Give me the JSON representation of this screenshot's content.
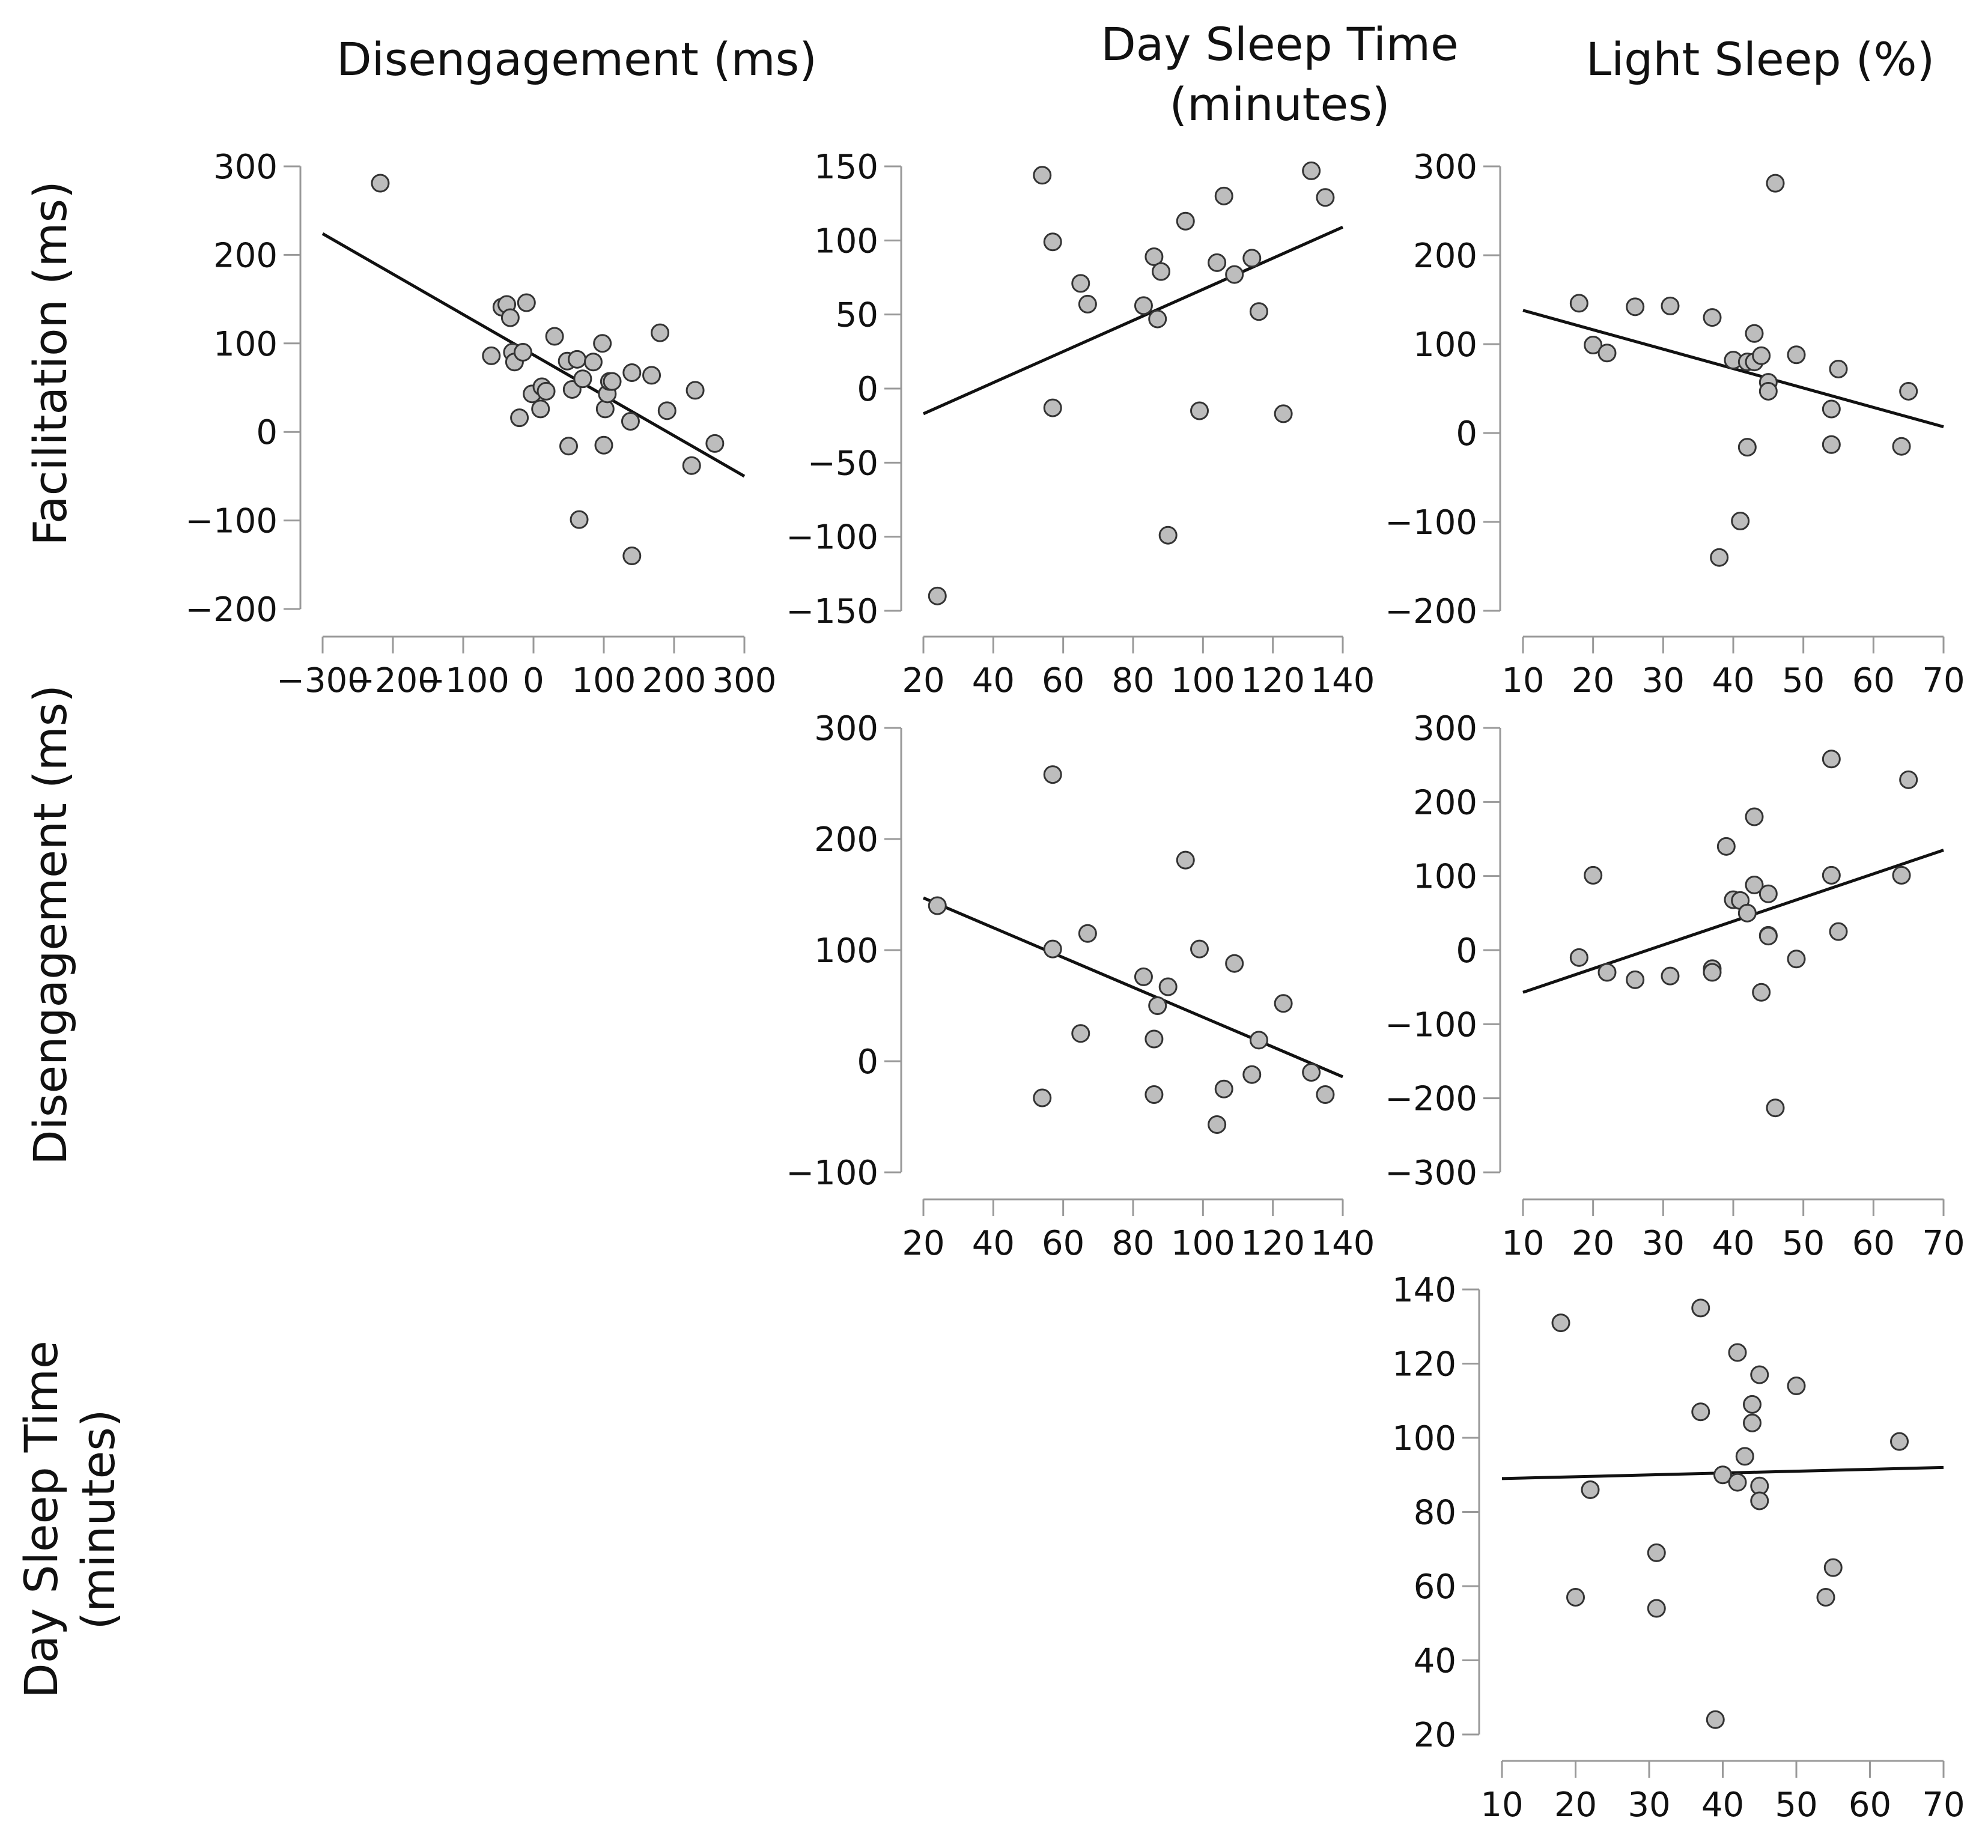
{
  "column_headers": [
    {
      "lines": [
        "Disengagement (ms)"
      ]
    },
    {
      "lines": [
        "Day Sleep Time",
        "(minutes)"
      ]
    },
    {
      "lines": [
        "Light Sleep (%)"
      ]
    }
  ],
  "row_headers": [
    {
      "lines": [
        "Facilitation (ms)"
      ]
    },
    {
      "lines": [
        "Disengagement (ms)"
      ]
    },
    {
      "lines": [
        "Day Sleep Time",
        "(minutes)"
      ]
    }
  ],
  "chart_data": [
    {
      "type": "scatter",
      "row": 0,
      "col": 0,
      "xlabel": "Disengagement (ms)",
      "ylabel": "Facilitation (ms)",
      "xlim": [
        -300,
        300
      ],
      "ylim": [
        -200,
        300
      ],
      "xticks": [
        -300,
        -200,
        -100,
        0,
        100,
        200,
        300
      ],
      "yticks": [
        300,
        200,
        100,
        0,
        -100,
        -200
      ],
      "xtick_labels": [
        "−300",
        "−200",
        "−100",
        "0",
        "100",
        "200",
        "300"
      ],
      "ytick_labels": [
        "300",
        "200",
        "100",
        "0",
        "−100",
        "−200"
      ],
      "points": [
        [
          -218,
          281
        ],
        [
          -60,
          86
        ],
        [
          -45,
          141
        ],
        [
          -38,
          144
        ],
        [
          -33,
          129
        ],
        [
          -30,
          90
        ],
        [
          -27,
          79
        ],
        [
          -20,
          16
        ],
        [
          -15,
          90
        ],
        [
          -10,
          146
        ],
        [
          -2,
          43
        ],
        [
          10,
          26
        ],
        [
          12,
          51
        ],
        [
          18,
          46
        ],
        [
          30,
          108
        ],
        [
          48,
          80
        ],
        [
          50,
          -16
        ],
        [
          55,
          48
        ],
        [
          62,
          82
        ],
        [
          65,
          -99
        ],
        [
          70,
          60
        ],
        [
          85,
          79
        ],
        [
          98,
          100
        ],
        [
          100,
          -15
        ],
        [
          102,
          26
        ],
        [
          105,
          43
        ],
        [
          108,
          57
        ],
        [
          112,
          57
        ],
        [
          138,
          12
        ],
        [
          140,
          67
        ],
        [
          140,
          -140
        ],
        [
          168,
          64
        ],
        [
          180,
          112
        ],
        [
          190,
          24
        ],
        [
          225,
          -38
        ],
        [
          230,
          47
        ],
        [
          258,
          -13
        ]
      ],
      "fit": [
        [
          -300,
          224
        ],
        [
          300,
          -50
        ]
      ]
    },
    {
      "type": "scatter",
      "row": 0,
      "col": 1,
      "xlabel": "Day Sleep Time (minutes)",
      "ylabel": "Facilitation (ms)",
      "xlim": [
        20,
        140
      ],
      "ylim": [
        -150,
        150
      ],
      "xticks": [
        20,
        40,
        60,
        80,
        100,
        120,
        140
      ],
      "yticks": [
        150,
        100,
        50,
        0,
        -50,
        -100,
        -150
      ],
      "xtick_labels": [
        "20",
        "40",
        "60",
        "80",
        "100",
        "120",
        "140"
      ],
      "ytick_labels": [
        "150",
        "100",
        "50",
        "0",
        "−50",
        "−100",
        "−150"
      ],
      "points": [
        [
          24,
          -140
        ],
        [
          54,
          144
        ],
        [
          57,
          99
        ],
        [
          57,
          -13
        ],
        [
          65,
          71
        ],
        [
          67,
          57
        ],
        [
          83,
          56
        ],
        [
          86,
          89
        ],
        [
          87,
          47
        ],
        [
          88,
          79
        ],
        [
          90,
          -99
        ],
        [
          95,
          113
        ],
        [
          99,
          -15
        ],
        [
          104,
          85
        ],
        [
          106,
          130
        ],
        [
          109,
          77
        ],
        [
          114,
          88
        ],
        [
          116,
          52
        ],
        [
          123,
          -17
        ],
        [
          131,
          147
        ],
        [
          135,
          129
        ]
      ],
      "fit": [
        [
          20,
          -17
        ],
        [
          140,
          109
        ]
      ]
    },
    {
      "type": "scatter",
      "row": 0,
      "col": 2,
      "xlabel": "Light Sleep (%)",
      "ylabel": "Facilitation (ms)",
      "xlim": [
        10,
        70
      ],
      "ylim": [
        -200,
        300
      ],
      "xticks": [
        10,
        20,
        30,
        40,
        50,
        60,
        70
      ],
      "yticks": [
        300,
        200,
        100,
        0,
        -100,
        -200
      ],
      "xtick_labels": [
        "10",
        "20",
        "30",
        "40",
        "50",
        "60",
        "70"
      ],
      "ytick_labels": [
        "300",
        "200",
        "100",
        "0",
        "−100",
        "−200"
      ],
      "points": [
        [
          18,
          146
        ],
        [
          20,
          99
        ],
        [
          22,
          90
        ],
        [
          26,
          142
        ],
        [
          31,
          143
        ],
        [
          37,
          130
        ],
        [
          38,
          -140
        ],
        [
          40,
          82
        ],
        [
          41,
          -99
        ],
        [
          42,
          80
        ],
        [
          42,
          -16
        ],
        [
          43,
          112
        ],
        [
          43,
          80
        ],
        [
          44,
          87
        ],
        [
          45,
          57
        ],
        [
          45,
          47
        ],
        [
          46,
          281
        ],
        [
          49,
          88
        ],
        [
          54,
          27
        ],
        [
          54,
          -13
        ],
        [
          55,
          72
        ],
        [
          64,
          -15
        ],
        [
          65,
          47
        ]
      ],
      "fit": [
        [
          10,
          138
        ],
        [
          70,
          7
        ]
      ]
    },
    {
      "type": "scatter",
      "row": 1,
      "col": 1,
      "xlabel": "Day Sleep Time (minutes)",
      "ylabel": "Disengagement (ms)",
      "xlim": [
        20,
        140
      ],
      "ylim": [
        -100,
        300
      ],
      "xticks": [
        20,
        40,
        60,
        80,
        100,
        120,
        140
      ],
      "yticks": [
        300,
        200,
        100,
        0,
        -100
      ],
      "xtick_labels": [
        "20",
        "40",
        "60",
        "80",
        "100",
        "120",
        "140"
      ],
      "ytick_labels": [
        "300",
        "200",
        "100",
        "0",
        "−100"
      ],
      "points": [
        [
          24,
          140
        ],
        [
          54,
          -33
        ],
        [
          57,
          258
        ],
        [
          57,
          101
        ],
        [
          65,
          25
        ],
        [
          67,
          115
        ],
        [
          83,
          76
        ],
        [
          86,
          20
        ],
        [
          86,
          -30
        ],
        [
          87,
          50
        ],
        [
          90,
          67
        ],
        [
          95,
          181
        ],
        [
          99,
          101
        ],
        [
          104,
          -57
        ],
        [
          106,
          -25
        ],
        [
          109,
          88
        ],
        [
          114,
          -12
        ],
        [
          116,
          19
        ],
        [
          123,
          52
        ],
        [
          131,
          -10
        ],
        [
          135,
          -30
        ]
      ],
      "fit": [
        [
          20,
          147
        ],
        [
          140,
          -14
        ]
      ]
    },
    {
      "type": "scatter",
      "row": 1,
      "col": 2,
      "xlabel": "Light Sleep (%)",
      "ylabel": "Disengagement (ms)",
      "xlim": [
        10,
        70
      ],
      "ylim": [
        -300,
        300
      ],
      "xticks": [
        10,
        20,
        30,
        40,
        50,
        60,
        70
      ],
      "yticks": [
        300,
        200,
        100,
        0,
        -100,
        -200,
        -300
      ],
      "xtick_labels": [
        "10",
        "20",
        "30",
        "40",
        "50",
        "60",
        "70"
      ],
      "ytick_labels": [
        "300",
        "200",
        "100",
        "0",
        "−100",
        "−200",
        "−300"
      ],
      "points": [
        [
          18,
          -10
        ],
        [
          20,
          101
        ],
        [
          22,
          -30
        ],
        [
          26,
          -40
        ],
        [
          31,
          -35
        ],
        [
          37,
          -25
        ],
        [
          37,
          -30
        ],
        [
          39,
          140
        ],
        [
          40,
          68
        ],
        [
          41,
          67
        ],
        [
          42,
          50
        ],
        [
          43,
          180
        ],
        [
          43,
          88
        ],
        [
          44,
          -57
        ],
        [
          45,
          76
        ],
        [
          45,
          20
        ],
        [
          45,
          19
        ],
        [
          46,
          -213
        ],
        [
          49,
          -12
        ],
        [
          54,
          258
        ],
        [
          54,
          101
        ],
        [
          55,
          25
        ],
        [
          64,
          101
        ],
        [
          65,
          230
        ]
      ],
      "fit": [
        [
          10,
          -57
        ],
        [
          70,
          135
        ]
      ]
    },
    {
      "type": "scatter",
      "row": 2,
      "col": 2,
      "xlabel": "Light Sleep (%)",
      "ylabel": "Day Sleep Time (minutes)",
      "xlim": [
        10,
        70
      ],
      "ylim": [
        20,
        140
      ],
      "xticks": [
        10,
        20,
        30,
        40,
        50,
        60,
        70
      ],
      "yticks": [
        140,
        120,
        100,
        80,
        60,
        40,
        20
      ],
      "xtick_labels": [
        "10",
        "20",
        "30",
        "40",
        "50",
        "60",
        "70"
      ],
      "ytick_labels": [
        "140",
        "120",
        "100",
        "80",
        "60",
        "40",
        "20"
      ],
      "points": [
        [
          18,
          131
        ],
        [
          20,
          57
        ],
        [
          22,
          86
        ],
        [
          31,
          69
        ],
        [
          31,
          54
        ],
        [
          37,
          135
        ],
        [
          37,
          107
        ],
        [
          39,
          24
        ],
        [
          40,
          90
        ],
        [
          42,
          123
        ],
        [
          42,
          88
        ],
        [
          43,
          95
        ],
        [
          44,
          109
        ],
        [
          44,
          104
        ],
        [
          45,
          117
        ],
        [
          45,
          87
        ],
        [
          45,
          83
        ],
        [
          50,
          114
        ],
        [
          54,
          57
        ],
        [
          55,
          65
        ],
        [
          64,
          99
        ]
      ],
      "fit": [
        [
          10,
          89
        ],
        [
          70,
          92
        ]
      ]
    }
  ]
}
